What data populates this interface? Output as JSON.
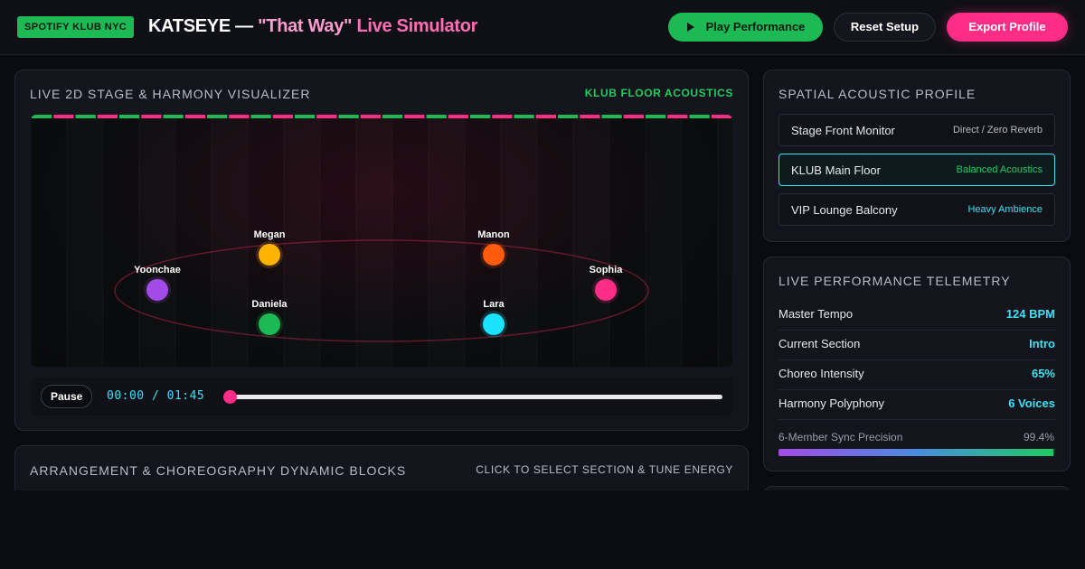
{
  "header": {
    "badge": "SPOTIFY KLUB NYC",
    "title_artist": "KATSEYE — ",
    "title_song": "\"That Way\"",
    "title_suffix": " Live Simulator",
    "play_label": "Play Performance",
    "reset_label": "Reset Setup",
    "export_label": "Export Profile"
  },
  "stage_panel": {
    "title": "LIVE 2D STAGE & HARMONY VISUALIZER",
    "acoustics_label": "KLUB FLOOR ACOUSTICS",
    "members": [
      {
        "name": "Megan",
        "color": "#ffb300"
      },
      {
        "name": "Manon",
        "color": "#ff5b0f"
      },
      {
        "name": "Yoonchae",
        "color": "#a24be6"
      },
      {
        "name": "Sophia",
        "color": "#ff2d85"
      },
      {
        "name": "Daniela",
        "color": "#1db954"
      },
      {
        "name": "Lara",
        "color": "#19e3ff"
      }
    ],
    "transport": {
      "pause_label": "Pause",
      "time": "00:00 / 01:45",
      "progress": 0
    }
  },
  "blocks_panel": {
    "title": "ARRANGEMENT & CHOREOGRAPHY DYNAMIC BLOCKS",
    "hint": "CLICK TO SELECT SECTION & TUNE ENERGY"
  },
  "spatial_panel": {
    "title": "SPATIAL ACOUSTIC PROFILE",
    "profiles": [
      {
        "name": "Stage Front Monitor",
        "desc": "Direct / Zero Reverb",
        "desc_color": "#b9bcc8",
        "active": false
      },
      {
        "name": "KLUB Main Floor",
        "desc": "Balanced Acoustics",
        "desc_color": "#1ecb61",
        "active": true
      },
      {
        "name": "VIP Lounge Balcony",
        "desc": "Heavy Ambience",
        "desc_color": "#3fe0f5",
        "active": false
      }
    ]
  },
  "telemetry_panel": {
    "title": "LIVE PERFORMANCE TELEMETRY",
    "rows": [
      {
        "key": "Master Tempo",
        "value": "124 BPM"
      },
      {
        "key": "Current Section",
        "value": "Intro"
      },
      {
        "key": "Choreo Intensity",
        "value": "65%"
      },
      {
        "key": "Harmony Polyphony",
        "value": "6 Voices"
      }
    ],
    "sync_label": "6-Member Sync Precision",
    "sync_value": "99.4%",
    "sync_fraction": 0.994
  },
  "colors": {
    "accent_green": "#1db954",
    "accent_pink": "#ff2d85",
    "accent_cyan": "#3fe0f5"
  }
}
